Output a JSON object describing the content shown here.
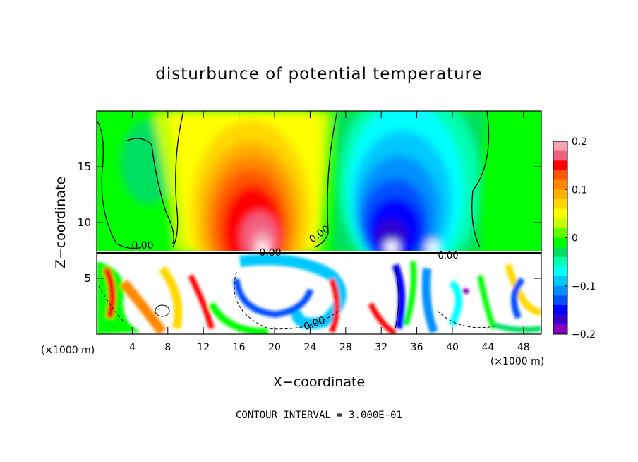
{
  "chart_data": {
    "type": "heatmap",
    "title": "disturbunce of potential temperature",
    "xlabel": "X−coordinate",
    "ylabel": "Z−coordinate",
    "x_unit_left": "(×1000 m)",
    "x_unit_right": "(×1000 m)",
    "x_ticks": [
      "4",
      "8",
      "12",
      "16",
      "20",
      "24",
      "28",
      "32",
      "36",
      "40",
      "44",
      "48"
    ],
    "y_ticks": [
      "5",
      "10",
      "15"
    ],
    "xlim": [
      0,
      50
    ],
    "ylim": [
      0,
      20
    ],
    "colorbar": {
      "range": [
        -0.2,
        0.2
      ],
      "tick_labels": [
        "0.2",
        "0.1",
        "0",
        "−0.1",
        "−0.2"
      ],
      "tick_values": [
        0.2,
        0.1,
        0,
        -0.1,
        -0.2
      ],
      "colors": [
        "#f7a3b3",
        "#f06080",
        "#ff0000",
        "#ff5500",
        "#ff8800",
        "#ffb000",
        "#ffd800",
        "#ffff00",
        "#c8ff00",
        "#66ff00",
        "#00ff00",
        "#00e060",
        "#00ffb0",
        "#00ffff",
        "#00c8ff",
        "#0090ff",
        "#0050ff",
        "#0000ff",
        "#3300cc",
        "#8800bb"
      ]
    },
    "contour_labels": [
      "0.00",
      "0.00",
      "0.00",
      "0.00",
      "0.00"
    ],
    "annotation": "CONTOUR INTERVAL =  3.000E−01"
  }
}
